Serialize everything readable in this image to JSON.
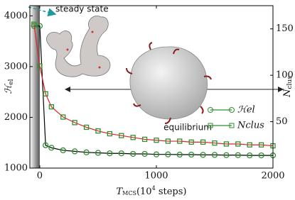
{
  "chart_data": {
    "type": "line",
    "xlabel": [
      "T",
      "MCS",
      "(10",
      "4",
      " steps)"
    ],
    "ylabel": [
      "ℋ",
      "el"
    ],
    "y2label": [
      "N",
      "clus"
    ],
    "x": [
      -50,
      0,
      50,
      100,
      200,
      300,
      400,
      500,
      600,
      700,
      800,
      900,
      1000,
      1100,
      1200,
      1300,
      1400,
      1500,
      1600,
      1700,
      1800,
      1900,
      2000
    ],
    "series": [
      {
        "name": "ℋel",
        "color": "#000000",
        "marker": "circle",
        "marker_color": "#2f8f2f",
        "values": [
          3800,
          3800,
          1450,
          1400,
          1350,
          1330,
          1310,
          1300,
          1290,
          1290,
          1280,
          1280,
          1270,
          1270,
          1265,
          1265,
          1260,
          1260,
          1255,
          1255,
          1250,
          1250,
          1250
        ]
      },
      {
        "name": "Nclus",
        "color": "#e02020",
        "marker": "square",
        "marker_color": "#2f8f2f",
        "axis": "y2",
        "values": [
          155,
          110,
          80,
          66,
          55,
          49,
          44,
          40,
          37,
          35,
          33,
          31,
          30,
          29,
          29,
          28,
          28,
          27,
          26,
          26,
          25,
          25,
          24
        ]
      }
    ],
    "xlim": [
      -85,
      2000
    ],
    "xticks": [
      0,
      1000,
      2000
    ],
    "ylim": [
      1000,
      4200
    ],
    "yticks": [
      1000,
      2000,
      3000,
      4000
    ],
    "y2lim": [
      0,
      175
    ],
    "y2ticks": [
      50,
      100,
      150
    ],
    "annotations": [
      "steady state",
      "equilibrium"
    ],
    "legend": "right"
  }
}
